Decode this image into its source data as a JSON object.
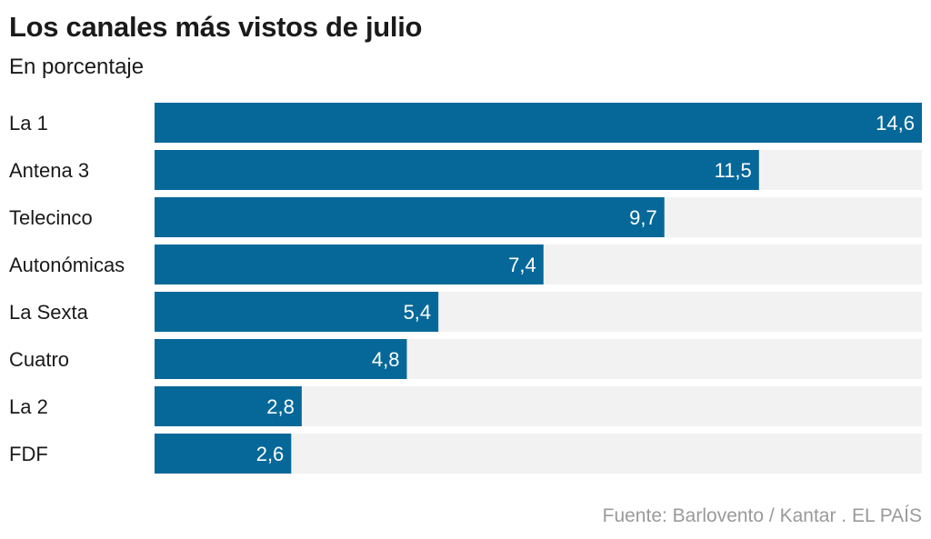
{
  "title": "Los canales más vistos de julio",
  "subtitle": "En porcentaje",
  "source": "Fuente: Barlovento / Kantar . EL PAÍS",
  "colors": {
    "bar": "#066899",
    "track": "#f2f2f2",
    "label": "#1a1a1a",
    "value": "#ffffff"
  },
  "chart_data": {
    "type": "bar",
    "orientation": "horizontal",
    "title": "Los canales más vistos de julio",
    "subtitle": "En porcentaje",
    "categories": [
      "La 1",
      "Antena 3",
      "Telecinco",
      "Autonómicas",
      "La Sexta",
      "Cuatro",
      "La 2",
      "FDF"
    ],
    "values": [
      14.6,
      11.5,
      9.7,
      7.4,
      5.4,
      4.8,
      2.8,
      2.6
    ],
    "value_labels": [
      "14,6",
      "11,5",
      "9,7",
      "7,4",
      "5,4",
      "4,8",
      "2,8",
      "2,6"
    ],
    "xlabel": "",
    "ylabel": "",
    "xlim": [
      0,
      14.6
    ],
    "grid": false,
    "legend": "none"
  }
}
